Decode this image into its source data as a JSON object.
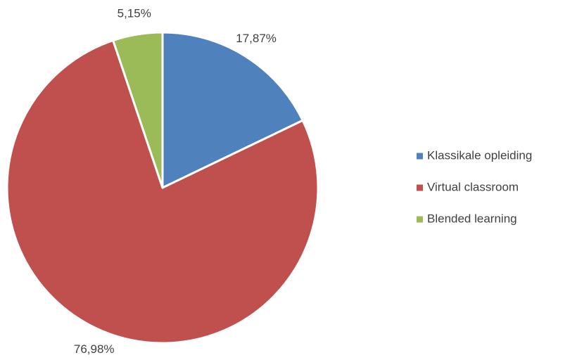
{
  "chart_data": {
    "type": "pie",
    "categories": [
      "Klassikale opleiding",
      "Virtual classroom",
      "Blended learning"
    ],
    "values": [
      17.87,
      76.98,
      5.15
    ],
    "value_labels": [
      "17,87%",
      "76,98%",
      "5,15%"
    ],
    "colors": [
      "#4f81bd",
      "#c0504d",
      "#9bbb59"
    ],
    "legend": "right"
  }
}
